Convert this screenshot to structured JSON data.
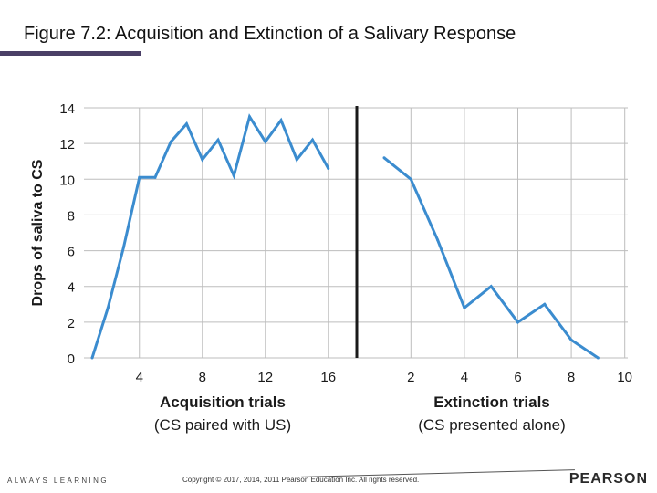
{
  "slide": {
    "title": "Figure 7.2: Acquisition and Extinction of a Salivary Response",
    "footer_left": "ALWAYS LEARNING",
    "footer_copyright": "Copyright © 2017, 2014, 2011 Pearson Education Inc. All rights reserved.",
    "footer_logo": "PEARSON"
  },
  "chart_data": {
    "type": "line",
    "ylabel": "Drops of saliva to CS",
    "ylim": [
      0,
      14
    ],
    "yticks": [
      "0",
      "2",
      "4",
      "6",
      "8",
      "10",
      "12",
      "14"
    ],
    "grid": true,
    "panels": [
      {
        "name": "acquisition",
        "xlabel": "Acquisition trials",
        "xsublabel": "(CS paired with US)",
        "xlim": [
          0,
          17
        ],
        "xticks": [
          "4",
          "8",
          "12",
          "16"
        ],
        "x": [
          1,
          2,
          3,
          4,
          5,
          6,
          7,
          8,
          9,
          10,
          11,
          12,
          13,
          14,
          15,
          16
        ],
        "values": [
          0,
          2.8,
          6.2,
          10.1,
          10.1,
          12.1,
          13.1,
          11.1,
          12.2,
          10.2,
          13.5,
          12.1,
          13.3,
          11.1,
          12.2,
          10.6
        ]
      },
      {
        "name": "extinction",
        "xlabel": "Extinction trials",
        "xsublabel": "(CS presented alone)",
        "xlim": [
          0,
          10
        ],
        "xticks": [
          "2",
          "4",
          "6",
          "8",
          "10"
        ],
        "x": [
          1,
          2,
          3,
          4,
          5,
          6,
          7,
          8,
          9
        ],
        "values": [
          11.2,
          10,
          6.6,
          2.8,
          4,
          2,
          3,
          1,
          0
        ]
      }
    ],
    "colors": {
      "line": "#3b8ccf",
      "grid": "#bdbdbd",
      "divider": "#1a1a1a",
      "axis_text": "#1a1a1a"
    }
  }
}
